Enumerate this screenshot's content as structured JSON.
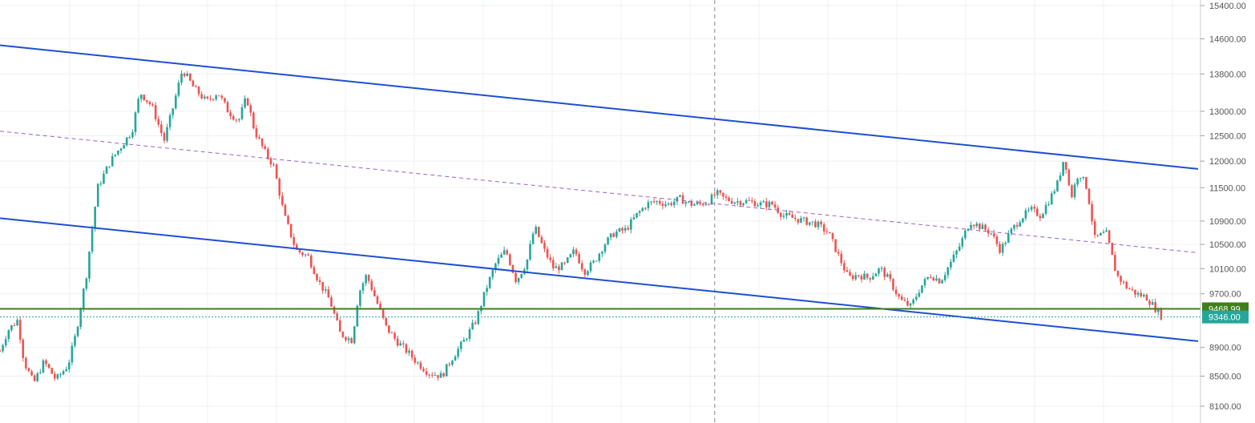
{
  "colors": {
    "background": "#ffffff",
    "grid": "#eef0f3",
    "up_candle": "#26a69a",
    "down_candle": "#ef5350",
    "channel_line": "#1e4fd1",
    "midline": "#9c5fc4",
    "support_line": "#3f7f1e",
    "last_price_line": "#26a69a",
    "crosshair": "#888888"
  },
  "chart_data": {
    "type": "candlestick",
    "y_axis": {
      "ticks": [
        "15400.00",
        "14600.00",
        "13800.00",
        "13000.00",
        "12500.00",
        "12000.00",
        "11500.00",
        "10900.00",
        "10500.00",
        "10100.00",
        "9700.00",
        "8900.00",
        "8500.00",
        "8100.00"
      ],
      "tick_values": [
        15400,
        14600,
        13800,
        13000,
        12500,
        12000,
        11500,
        10900,
        10500,
        10100,
        9700,
        8900,
        8500,
        8100
      ],
      "scale": "log",
      "range": [
        7950,
        15450
      ],
      "position": "right"
    },
    "x_range": [
      0,
      1500
    ],
    "price_tags": [
      {
        "label": "9468.99",
        "value": 9468.99,
        "color": "#3f7f1e"
      },
      {
        "label": "9346.00",
        "value": 9346.0,
        "color": "#26a69a"
      }
    ],
    "crosshair_x": 893,
    "channel": {
      "upper": [
        [
          0,
          14450
        ],
        [
          1497,
          11850
        ]
      ],
      "lower": [
        [
          0,
          10950
        ],
        [
          1497,
          8990
        ]
      ],
      "mid": [
        [
          0,
          12590
        ],
        [
          1497,
          10360
        ]
      ]
    },
    "close_path": [
      [
        0,
        8850
      ],
      [
        10,
        9150
      ],
      [
        22,
        9300
      ],
      [
        30,
        8700
      ],
      [
        42,
        8400
      ],
      [
        55,
        8700
      ],
      [
        70,
        8450
      ],
      [
        85,
        8650
      ],
      [
        95,
        9100
      ],
      [
        108,
        10000
      ],
      [
        122,
        11500
      ],
      [
        138,
        12000
      ],
      [
        152,
        12300
      ],
      [
        165,
        12600
      ],
      [
        175,
        13400
      ],
      [
        190,
        13100
      ],
      [
        205,
        12400
      ],
      [
        215,
        13000
      ],
      [
        228,
        13900
      ],
      [
        242,
        13500
      ],
      [
        258,
        13200
      ],
      [
        272,
        13400
      ],
      [
        285,
        13000
      ],
      [
        298,
        12800
      ],
      [
        308,
        13300
      ],
      [
        318,
        12600
      ],
      [
        330,
        12200
      ],
      [
        342,
        11900
      ],
      [
        355,
        11000
      ],
      [
        370,
        10400
      ],
      [
        385,
        10300
      ],
      [
        398,
        9900
      ],
      [
        412,
        9600
      ],
      [
        425,
        9100
      ],
      [
        440,
        9000
      ],
      [
        448,
        9700
      ],
      [
        458,
        10000
      ],
      [
        470,
        9600
      ],
      [
        482,
        9200
      ],
      [
        495,
        9000
      ],
      [
        508,
        8850
      ],
      [
        520,
        8700
      ],
      [
        535,
        8550
      ],
      [
        552,
        8500
      ],
      [
        565,
        8750
      ],
      [
        580,
        9000
      ],
      [
        595,
        9300
      ],
      [
        608,
        9800
      ],
      [
        620,
        10200
      ],
      [
        632,
        10400
      ],
      [
        645,
        9900
      ],
      [
        658,
        10200
      ],
      [
        668,
        10800
      ],
      [
        680,
        10400
      ],
      [
        692,
        10100
      ],
      [
        705,
        10150
      ],
      [
        718,
        10400
      ],
      [
        730,
        10050
      ],
      [
        742,
        10200
      ],
      [
        755,
        10500
      ],
      [
        768,
        10700
      ],
      [
        782,
        10750
      ],
      [
        795,
        11000
      ],
      [
        808,
        11200
      ],
      [
        820,
        11250
      ],
      [
        835,
        11200
      ],
      [
        850,
        11300
      ],
      [
        862,
        11200
      ],
      [
        875,
        11200
      ],
      [
        885,
        11250
      ],
      [
        895,
        11400
      ],
      [
        905,
        11300
      ],
      [
        918,
        11250
      ],
      [
        935,
        11250
      ],
      [
        950,
        11200
      ],
      [
        965,
        11200
      ],
      [
        978,
        11000
      ],
      [
        992,
        10950
      ],
      [
        1005,
        10900
      ],
      [
        1020,
        10850
      ],
      [
        1035,
        10700
      ],
      [
        1048,
        10300
      ],
      [
        1060,
        9950
      ],
      [
        1072,
        10000
      ],
      [
        1085,
        9950
      ],
      [
        1100,
        10100
      ],
      [
        1112,
        9900
      ],
      [
        1125,
        9600
      ],
      [
        1138,
        9500
      ],
      [
        1150,
        9800
      ],
      [
        1162,
        10000
      ],
      [
        1175,
        9900
      ],
      [
        1188,
        10200
      ],
      [
        1200,
        10500
      ],
      [
        1212,
        10900
      ],
      [
        1225,
        10800
      ],
      [
        1238,
        10700
      ],
      [
        1250,
        10400
      ],
      [
        1262,
        10700
      ],
      [
        1275,
        10950
      ],
      [
        1288,
        11100
      ],
      [
        1300,
        11000
      ],
      [
        1312,
        11300
      ],
      [
        1322,
        11600
      ],
      [
        1330,
        12100
      ],
      [
        1338,
        11300
      ],
      [
        1348,
        11800
      ],
      [
        1358,
        11500
      ],
      [
        1368,
        10600
      ],
      [
        1382,
        10700
      ],
      [
        1395,
        10000
      ],
      [
        1408,
        9800
      ],
      [
        1420,
        9700
      ],
      [
        1432,
        9650
      ],
      [
        1442,
        9500
      ],
      [
        1452,
        9346
      ]
    ]
  }
}
